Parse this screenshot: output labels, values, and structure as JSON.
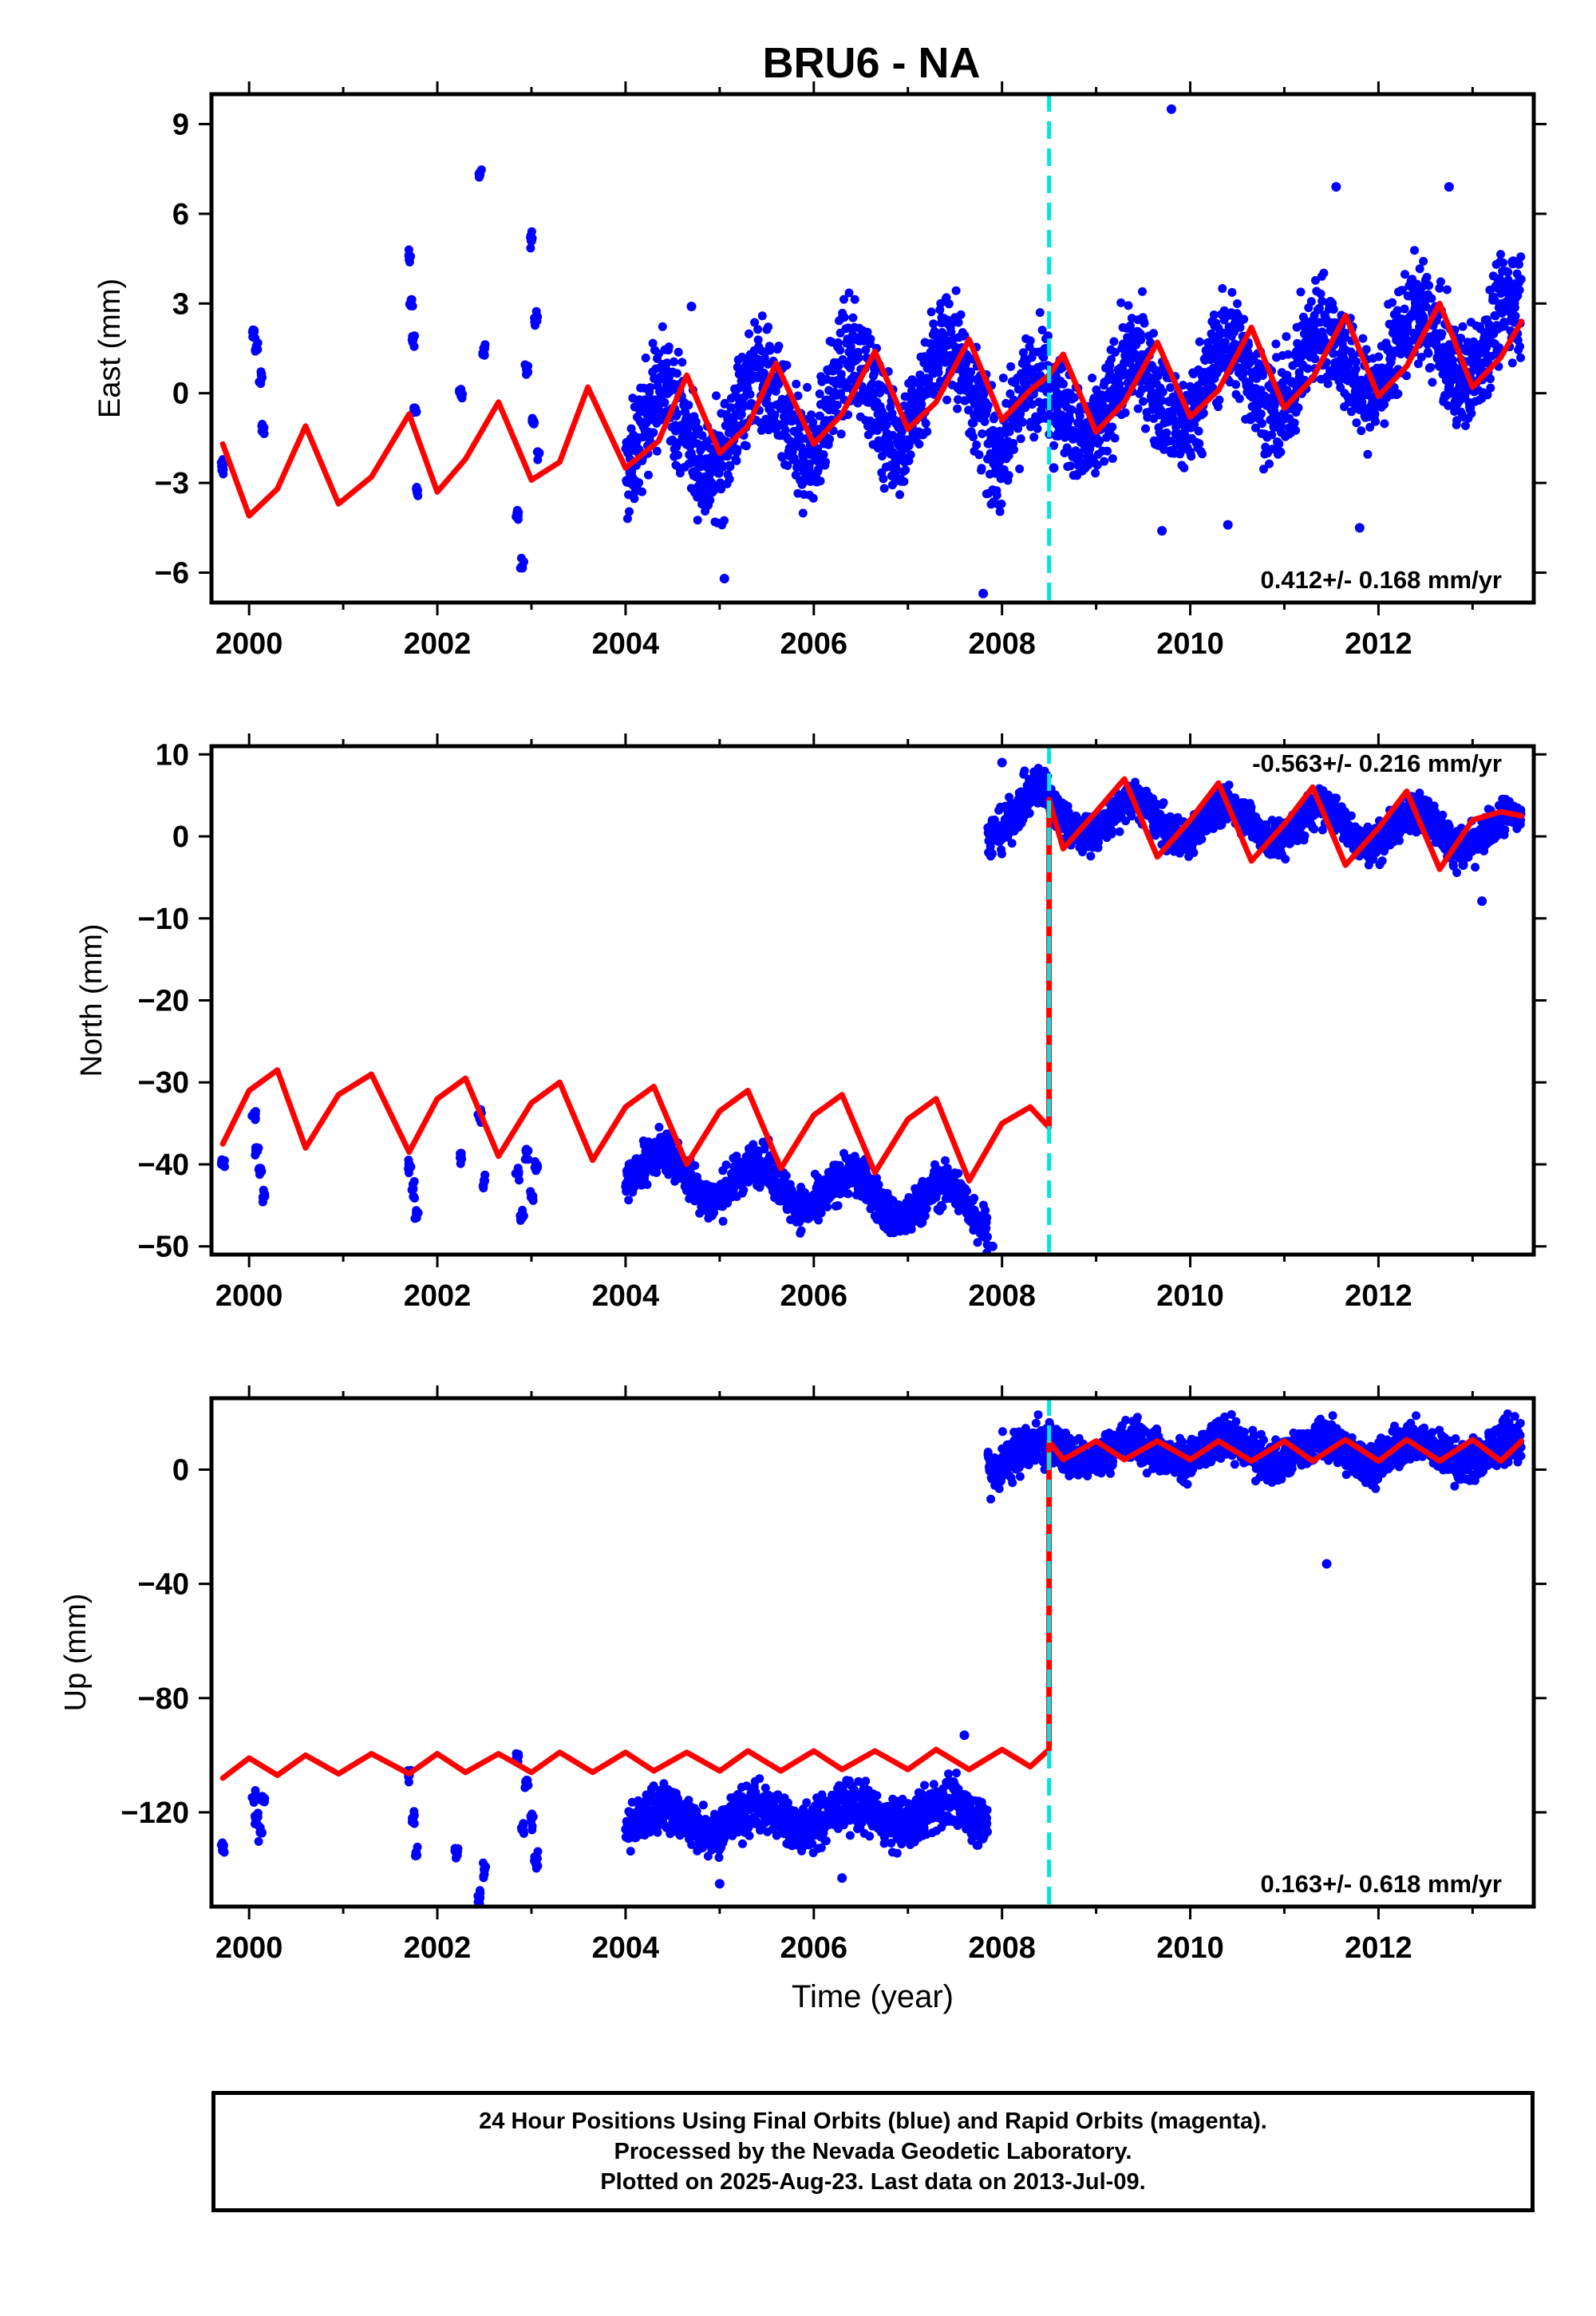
{
  "title": "BRU6 - NA",
  "footer": {
    "line1": "24 Hour Positions Using Final Orbits (blue) and Rapid Orbits (magenta).",
    "line2": "Processed by the Nevada Geodetic Laboratory.",
    "line3": "Plotted on 2025-Aug-23. Last data on 2013-Jul-09."
  },
  "colors": {
    "points": "#0000ff",
    "model": "#ff0000",
    "step_line": "#00e5e5",
    "axis": "#000000"
  },
  "chart_data": [
    {
      "type": "scatter",
      "panel": "east",
      "ylabel": "East (mm)",
      "xlabel": "",
      "xlim": [
        1999.6,
        2013.65
      ],
      "ylim": [
        -7,
        10
      ],
      "yticks": [
        -6,
        -3,
        0,
        3,
        6,
        9
      ],
      "xticks": [
        2000,
        2002,
        2004,
        2006,
        2008,
        2010,
        2012
      ],
      "velocity_label": "0.412+/- 0.168 mm/yr",
      "velocity_position": "bottom-right",
      "step_epoch": 2008.5,
      "observations": {
        "x": [
          1999.72,
          2000.05,
          2000.08,
          2000.12,
          2000.15,
          2001.7,
          2001.72,
          2001.74,
          2001.76,
          2001.78,
          2002.25,
          2002.45,
          2002.5,
          2002.85,
          2002.9,
          2002.95,
          2003.0,
          2003.02,
          2003.05,
          2003.08
        ],
        "y": [
          -2.4,
          2.1,
          1.5,
          0.4,
          -1.2,
          4.6,
          3.0,
          1.8,
          -0.5,
          -3.2,
          0.0,
          7.3,
          1.5,
          -4.0,
          -5.8,
          0.8,
          5.1,
          -1.0,
          2.5,
          -2.0
        ],
        "dense_segments": [
          {
            "start": 2004.0,
            "end": 2007.85,
            "trend_start": -1.6,
            "trend_end": 0.4,
            "amplitude": 1.5,
            "scatter": 1.3
          },
          {
            "start": 2007.85,
            "end": 2013.52,
            "trend_start": -0.9,
            "trend_end": 2.0,
            "amplitude": 1.3,
            "scatter": 1.2
          }
        ],
        "outliers": [
          [
            2007.8,
            -6.7
          ],
          [
            2009.8,
            9.5
          ],
          [
            2009.7,
            -4.6
          ],
          [
            2010.4,
            -4.4
          ],
          [
            2011.8,
            -4.5
          ],
          [
            2011.55,
            6.9
          ],
          [
            2012.75,
            6.9
          ],
          [
            2005.05,
            -6.2
          ],
          [
            2004.7,
            2.9
          ],
          [
            2008.55,
            -2.5
          ]
        ]
      },
      "model": {
        "x": [
          1999.72,
          2000.0,
          2000.3,
          2000.6,
          2000.95,
          2001.3,
          2001.7,
          2002.0,
          2002.3,
          2002.65,
          2003.0,
          2003.3,
          2003.6,
          2004.0,
          2004.35,
          2004.65,
          2005.0,
          2005.3,
          2005.6,
          2006.0,
          2006.3,
          2006.65,
          2007.0,
          2007.3,
          2007.65,
          2008.0,
          2008.3,
          2008.5,
          2008.65,
          2009.0,
          2009.3,
          2009.65,
          2010.0,
          2010.3,
          2010.65,
          2011.0,
          2011.3,
          2011.65,
          2012.0,
          2012.3,
          2012.65,
          2013.0,
          2013.3,
          2013.52
        ],
        "y": [
          -1.7,
          -4.1,
          -3.2,
          -1.1,
          -3.7,
          -2.8,
          -0.7,
          -3.3,
          -2.2,
          -0.3,
          -2.9,
          -2.3,
          0.2,
          -2.5,
          -1.6,
          0.6,
          -2.0,
          -1.1,
          1.0,
          -1.7,
          -0.7,
          1.4,
          -1.2,
          -0.3,
          1.8,
          -0.9,
          0.1,
          0.6,
          1.3,
          -1.3,
          -0.3,
          1.7,
          -0.8,
          0.1,
          2.2,
          -0.5,
          0.5,
          2.6,
          -0.1,
          0.9,
          3.0,
          0.2,
          1.2,
          2.4
        ]
      }
    },
    {
      "type": "scatter",
      "panel": "north",
      "ylabel": "North (mm)",
      "xlabel": "",
      "xlim": [
        1999.6,
        2013.65
      ],
      "ylim": [
        -51,
        11
      ],
      "yticks": [
        -50,
        -40,
        -30,
        -20,
        -10,
        0,
        10
      ],
      "xticks": [
        2000,
        2002,
        2004,
        2006,
        2008,
        2010,
        2012
      ],
      "velocity_label": "-0.563+/- 0.216 mm/yr",
      "velocity_position": "top-right",
      "step_epoch": 2008.5,
      "observations": {
        "x": [
          1999.72,
          2000.05,
          2000.08,
          2000.12,
          2000.15,
          2001.7,
          2001.74,
          2001.78,
          2002.25,
          2002.45,
          2002.5,
          2002.85,
          2002.9,
          2002.95,
          2003.0,
          2003.05
        ],
        "y": [
          -40.0,
          -34.0,
          -38.0,
          -40.5,
          -44.0,
          -40.0,
          -43.0,
          -46.0,
          -39.0,
          -34.0,
          -42.0,
          -41.0,
          -46.5,
          -38.5,
          -44.0,
          -40.0
        ],
        "dense_segments": [
          {
            "start": 2004.0,
            "end": 2007.85,
            "trend_start": -40.5,
            "trend_end": -45.5,
            "amplitude": 2.5,
            "scatter": 1.8
          },
          {
            "start": 2007.85,
            "end": 2008.5,
            "trend_start": 2.5,
            "trend_end": 3.5,
            "amplitude": 2.5,
            "scatter": 1.8
          },
          {
            "start": 2008.5,
            "end": 2013.52,
            "trend_start": 2.5,
            "trend_end": 0.5,
            "amplitude": 2.2,
            "scatter": 1.6
          }
        ],
        "outliers": [
          [
            2013.1,
            -7.9
          ],
          [
            2007.9,
            -50.0
          ],
          [
            2008.0,
            9.0
          ],
          [
            2012.9,
            -3.5
          ]
        ]
      },
      "model": {
        "x": [
          1999.72,
          2000.0,
          2000.3,
          2000.6,
          2000.95,
          2001.3,
          2001.7,
          2002.0,
          2002.3,
          2002.65,
          2003.0,
          2003.3,
          2003.65,
          2004.0,
          2004.3,
          2004.65,
          2005.0,
          2005.3,
          2005.65,
          2006.0,
          2006.3,
          2006.65,
          2007.0,
          2007.3,
          2007.65,
          2008.0,
          2008.3,
          2008.5,
          2008.5,
          2008.65,
          2009.0,
          2009.3,
          2009.65,
          2010.0,
          2010.3,
          2010.65,
          2011.0,
          2011.3,
          2011.65,
          2012.0,
          2012.3,
          2012.65,
          2013.0,
          2013.3,
          2013.52
        ],
        "y": [
          -37.5,
          -31.0,
          -28.5,
          -38.0,
          -31.5,
          -29.0,
          -38.5,
          -32.0,
          -29.5,
          -39.0,
          -32.5,
          -30.0,
          -39.5,
          -33.0,
          -30.5,
          -40.0,
          -33.5,
          -31.0,
          -40.5,
          -34.0,
          -31.5,
          -41.0,
          -34.5,
          -32.0,
          -42.0,
          -35.0,
          -33.0,
          -35.5,
          4.5,
          -1.5,
          3.0,
          7.0,
          -2.5,
          2.0,
          6.5,
          -3.0,
          1.5,
          6.0,
          -3.5,
          1.0,
          5.5,
          -4.0,
          2.0,
          3.0,
          2.5
        ]
      }
    },
    {
      "type": "scatter",
      "panel": "up",
      "ylabel": "Up (mm)",
      "xlabel": "Time (year)",
      "xlim": [
        1999.6,
        2013.65
      ],
      "ylim": [
        -153,
        25
      ],
      "yticks": [
        -120,
        -80,
        -40,
        0
      ],
      "xticks": [
        2000,
        2002,
        2004,
        2006,
        2008,
        2010,
        2012
      ],
      "velocity_label": "0.163+/- 0.618 mm/yr",
      "velocity_position": "bottom-right",
      "step_epoch": 2008.5,
      "observations": {
        "x": [
          1999.72,
          2000.05,
          2000.08,
          2000.12,
          2000.15,
          2001.7,
          2001.74,
          2001.78,
          2002.2,
          2002.45,
          2002.5,
          2002.85,
          2002.9,
          2002.95,
          2003.0,
          2003.05
        ],
        "y": [
          -133.0,
          -115.0,
          -122.0,
          -127.0,
          -116.0,
          -107.0,
          -122.0,
          -135.0,
          -134.0,
          -150.0,
          -140.0,
          -100.0,
          -126.0,
          -110.0,
          -122.0,
          -138.0
        ],
        "dense_segments": [
          {
            "start": 2004.0,
            "end": 2007.85,
            "trend_start": -123.0,
            "trend_end": -120.0,
            "amplitude": 4.0,
            "scatter": 6.0
          },
          {
            "start": 2007.85,
            "end": 2008.5,
            "trend_start": 5.0,
            "trend_end": 6.0,
            "amplitude": 4.0,
            "scatter": 6.0
          },
          {
            "start": 2008.5,
            "end": 2013.52,
            "trend_start": 7.0,
            "trend_end": 6.0,
            "amplitude": 4.0,
            "scatter": 5.0
          }
        ],
        "outliers": [
          [
            2011.45,
            -33.0
          ],
          [
            2005.8,
            -130.0
          ],
          [
            2006.3,
            -143.0
          ],
          [
            2005.0,
            -145.0
          ],
          [
            2007.6,
            -93.0
          ]
        ]
      },
      "model": {
        "x": [
          1999.72,
          2000.0,
          2000.3,
          2000.6,
          2000.95,
          2001.3,
          2001.7,
          2002.0,
          2002.3,
          2002.65,
          2003.0,
          2003.3,
          2003.65,
          2004.0,
          2004.3,
          2004.65,
          2005.0,
          2005.3,
          2005.65,
          2006.0,
          2006.3,
          2006.65,
          2007.0,
          2007.3,
          2007.65,
          2008.0,
          2008.3,
          2008.5,
          2008.5,
          2008.65,
          2009.0,
          2009.3,
          2009.65,
          2010.0,
          2010.3,
          2010.65,
          2011.0,
          2011.3,
          2011.65,
          2012.0,
          2012.3,
          2012.65,
          2013.0,
          2013.3,
          2013.52
        ],
        "y": [
          -108.0,
          -101.0,
          -107.0,
          -100.0,
          -106.5,
          -99.5,
          -106.5,
          -99.5,
          -106.0,
          -99.5,
          -106.0,
          -99.0,
          -106.0,
          -99.0,
          -105.5,
          -99.0,
          -105.5,
          -98.5,
          -105.5,
          -98.5,
          -105.0,
          -98.5,
          -105.0,
          -98.0,
          -105.0,
          -98.0,
          -104.0,
          -98.0,
          10.0,
          3.5,
          10.0,
          3.5,
          10.0,
          3.5,
          10.0,
          3.0,
          10.0,
          3.0,
          10.5,
          3.0,
          10.5,
          3.0,
          10.5,
          3.0,
          10.0
        ]
      }
    }
  ]
}
